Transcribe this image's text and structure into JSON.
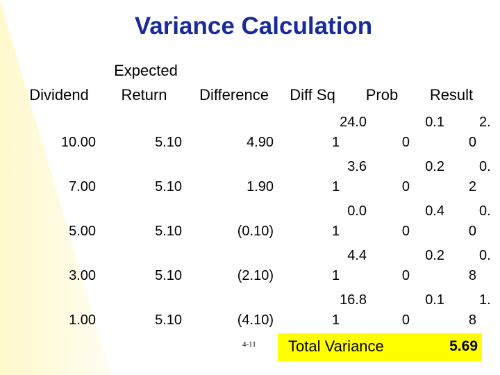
{
  "title": "Variance Calculation",
  "headers": {
    "dividend": "Dividend",
    "expected_return_line1": "Expected",
    "expected_return_line2": "Return",
    "difference": "Difference",
    "diff_sq": "Diff Sq",
    "prob": "Prob",
    "result": "Result"
  },
  "rows": [
    {
      "dividend": "10.00",
      "expected": "5.10",
      "difference": "4.90",
      "diffsq_line1": "24.0",
      "diffsq_line2": "1",
      "diffsq_tail": "0",
      "prob_line1": "0.1",
      "prob_line2": "0",
      "result_line1": "2.",
      "result_line2": ""
    },
    {
      "dividend": "7.00",
      "expected": "5.10",
      "difference": "1.90",
      "diffsq_line1": "3.6",
      "diffsq_line2": "1",
      "diffsq_tail": "0",
      "prob_line1": "0.2",
      "prob_line2": "2",
      "result_line1": "0.",
      "result_line2": ""
    },
    {
      "dividend": "5.00",
      "expected": "5.10",
      "difference": "(0.10)",
      "diffsq_line1": "0.0",
      "diffsq_line2": "1",
      "diffsq_tail": "0",
      "prob_line1": "0.4",
      "prob_line2": "0",
      "result_line1": "0.",
      "result_line2": ""
    },
    {
      "dividend": "3.00",
      "expected": "5.10",
      "difference": "(2.10)",
      "diffsq_line1": "4.4",
      "diffsq_line2": "1",
      "diffsq_tail": "0",
      "prob_line1": "0.2",
      "prob_line2": "8",
      "result_line1": "0.",
      "result_line2": ""
    },
    {
      "dividend": "1.00",
      "expected": "5.10",
      "difference": "(4.10)",
      "diffsq_line1": "16.8",
      "diffsq_line2": "1",
      "diffsq_tail": "0",
      "prob_line1": "0.1",
      "prob_line2": "8",
      "result_line1": "1.",
      "result_line2": ""
    }
  ],
  "slide_number": "4-11",
  "total": {
    "label": "Total Variance",
    "value": "5.69"
  }
}
